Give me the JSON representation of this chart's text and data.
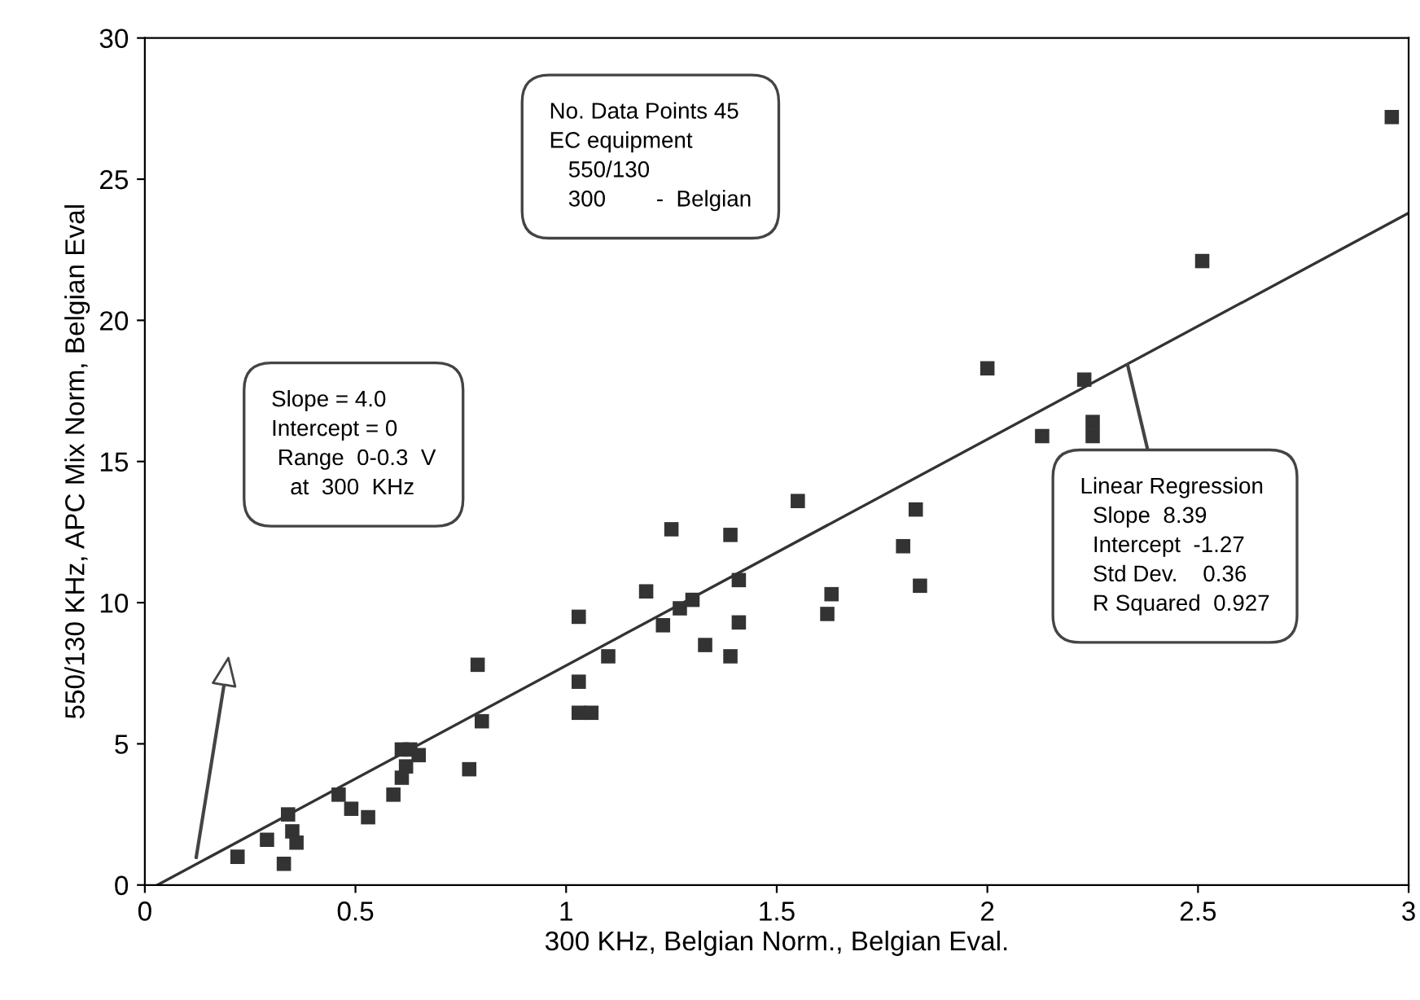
{
  "chart_data": {
    "type": "scatter",
    "xlabel": "300 KHz, Belgian Norm., Belgian Eval.",
    "ylabel": "550/130 KHz, APC Mix Norm, Belgian Eval",
    "xlim": [
      0,
      3
    ],
    "ylim": [
      0,
      30
    ],
    "xticks": [
      0,
      0.5,
      1,
      1.5,
      2,
      2.5,
      3
    ],
    "yticks": [
      0,
      5,
      10,
      15,
      20,
      25,
      30
    ],
    "grid": false,
    "series": [
      {
        "color": "#333333",
        "marker": "square",
        "x": [
          0.22,
          0.29,
          0.33,
          0.34,
          0.35,
          0.36,
          0.46,
          0.49,
          0.53,
          0.59,
          0.61,
          0.63,
          0.62,
          0.61,
          0.65,
          0.77,
          0.8,
          0.79,
          1.03,
          1.03,
          1.03,
          1.06,
          1.1,
          1.19,
          1.25,
          1.23,
          1.27,
          1.3,
          1.33,
          1.39,
          1.41,
          1.41,
          1.39,
          1.55,
          1.63,
          1.62,
          1.83,
          1.8,
          1.84,
          2.13,
          2.25,
          2.25,
          2.23,
          2.0,
          2.51,
          2.96
        ],
        "values": [
          1.0,
          1.6,
          0.75,
          2.5,
          1.9,
          1.5,
          3.2,
          2.7,
          2.4,
          3.2,
          4.8,
          4.8,
          4.2,
          3.8,
          4.6,
          4.1,
          5.8,
          7.8,
          7.2,
          9.5,
          6.1,
          6.1,
          8.1,
          10.4,
          12.6,
          9.2,
          9.8,
          10.1,
          8.5,
          12.4,
          10.8,
          9.3,
          8.1,
          13.6,
          10.3,
          9.6,
          13.3,
          12.0,
          10.6,
          15.9,
          16.4,
          15.9,
          17.9,
          18.3,
          22.1,
          27.2
        ]
      },
      {
        "type": "line",
        "marker": "none",
        "color": "#333333",
        "x": [
          0.03,
          3
        ],
        "values": [
          0,
          23.8
        ]
      }
    ],
    "annotations": [
      "No. Data Points 45\nEC equipment\n   550/130\n   300        -  Belgian",
      "Slope = 4.0\nIntercept = 0\n Range  0-0.3  V\n   at  300  KHz",
      "Linear Regression\n  Slope  8.39\n  Intercept  -1.27\n  Std Dev.    0.36\n  R Squared  0.927"
    ]
  }
}
